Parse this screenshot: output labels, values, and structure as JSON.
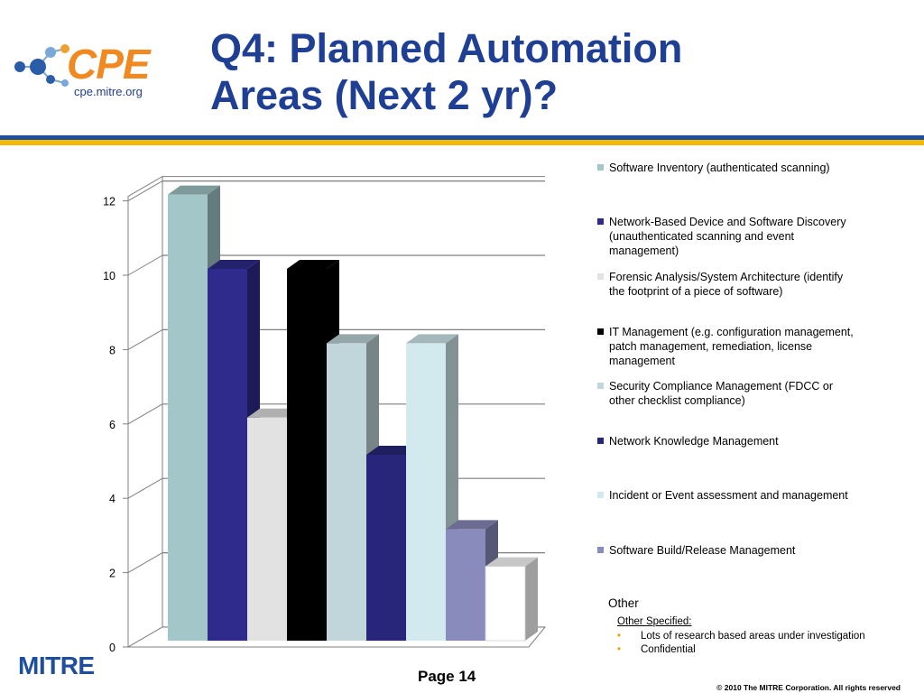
{
  "header": {
    "logo_text": "CPE",
    "logo_url_text": "cpe.mitre.org",
    "title_line1": "Q4: Planned Automation",
    "title_line2": "Areas (Next 2 yr)?"
  },
  "chart_data": {
    "type": "bar",
    "title": "",
    "xlabel": "",
    "ylabel": "",
    "ylim": [
      0,
      12
    ],
    "yticks": [
      0,
      2,
      4,
      6,
      8,
      10,
      12
    ],
    "grid": true,
    "legend_position": "right",
    "series": [
      {
        "name": "Software Inventory (authenticated scanning)",
        "value": 12,
        "color": "#a3c6c9"
      },
      {
        "name": "Network-Based Device and Software Discovery (unauthenticated scanning and event management)",
        "value": 10,
        "color": "#2e2b8c"
      },
      {
        "name": "Forensic Analysis/System Architecture (identify the footprint of a piece of software)",
        "value": 6,
        "color": "#e2e2e2"
      },
      {
        "name": "IT Management (e.g. configuration management, patch management, remediation, license management",
        "value": 10,
        "color": "#000000"
      },
      {
        "name": "Security Compliance Management (FDCC or other checklist compliance)",
        "value": 8,
        "color": "#c0d6da"
      },
      {
        "name": "Network Knowledge Management",
        "value": 5,
        "color": "#28267a"
      },
      {
        "name": "Incident or Event assessment and management",
        "value": 8,
        "color": "#d2eaee"
      },
      {
        "name": "Software Build/Release Management",
        "value": 3,
        "color": "#8a8bbd"
      },
      {
        "name": "Other",
        "value": 2,
        "color": "#ffffff"
      }
    ]
  },
  "other_note": {
    "heading": "Other",
    "specified_label": "Other Specified:",
    "items": [
      "Lots of research based areas under investigation",
      "Confidential"
    ]
  },
  "footer": {
    "org": "MITRE",
    "page_label": "Page  14",
    "copyright": "© 2010 The MITRE Corporation. All rights reserved"
  }
}
